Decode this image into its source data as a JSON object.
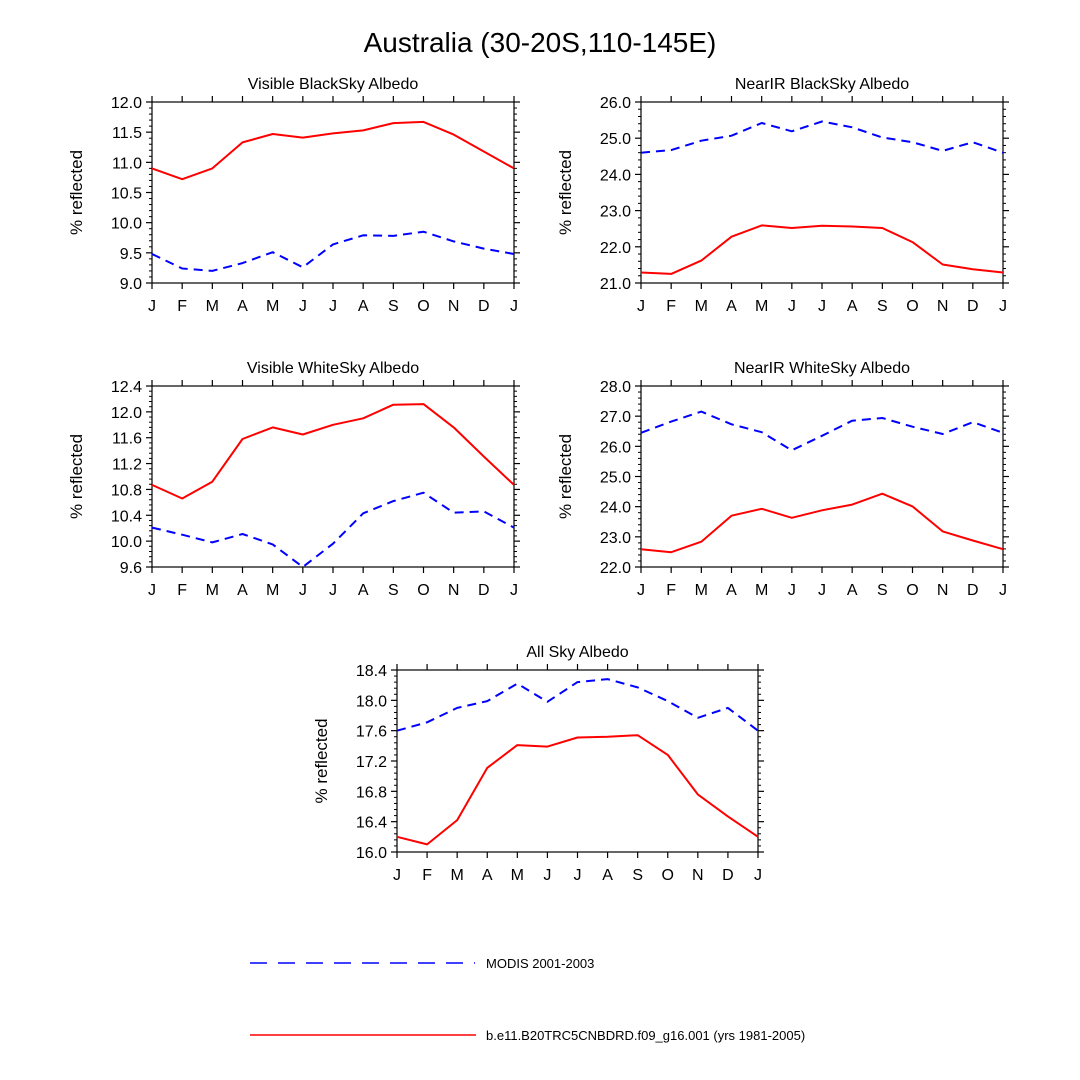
{
  "figure": {
    "title": "Australia (30-20S,110-145E)",
    "legend": [
      {
        "label": "MODIS 2001-2003",
        "color": "#0000ff",
        "style": "dashed"
      },
      {
        "label": "b.e11.B20TRC5CNBDRD.f09_g16.001 (yrs 1981-2005)",
        "color": "#ff0000",
        "style": "solid"
      }
    ]
  },
  "chart_data": [
    {
      "type": "line",
      "title": "Visible BlackSky Albedo",
      "xlabel": "",
      "ylabel": "% reflected",
      "categories": [
        "J",
        "F",
        "M",
        "A",
        "M",
        "J",
        "J",
        "A",
        "S",
        "O",
        "N",
        "D",
        "J"
      ],
      "ylim": [
        9.0,
        12.0
      ],
      "yticks": [
        "9.0",
        "9.5",
        "10.0",
        "10.5",
        "11.0",
        "11.5",
        "12.0"
      ],
      "series": [
        {
          "name": "MODIS 2001-2003",
          "color": "#0000ff",
          "style": "dashed",
          "values": [
            9.48,
            9.24,
            9.2,
            9.33,
            9.51,
            9.26,
            9.64,
            9.79,
            9.78,
            9.85,
            9.69,
            9.57,
            9.48
          ]
        },
        {
          "name": "b.e11.B20TRC5CNBDRD.f09_g16.001 (yrs 1981-2005)",
          "color": "#ff0000",
          "style": "solid",
          "values": [
            10.9,
            10.72,
            10.9,
            11.33,
            11.47,
            11.41,
            11.48,
            11.53,
            11.65,
            11.67,
            11.46,
            11.18,
            10.9
          ]
        }
      ]
    },
    {
      "type": "line",
      "title": "NearIR BlackSky Albedo",
      "xlabel": "",
      "ylabel": "% reflected",
      "categories": [
        "J",
        "F",
        "M",
        "A",
        "M",
        "J",
        "J",
        "A",
        "S",
        "O",
        "N",
        "D",
        "J"
      ],
      "ylim": [
        21.0,
        26.0
      ],
      "yticks": [
        "21.0",
        "22.0",
        "23.0",
        "24.0",
        "25.0",
        "26.0"
      ],
      "series": [
        {
          "name": "MODIS 2001-2003",
          "color": "#0000ff",
          "style": "dashed",
          "values": [
            24.6,
            24.67,
            24.93,
            25.07,
            25.42,
            25.19,
            25.46,
            25.3,
            25.02,
            24.89,
            24.65,
            24.89,
            24.6
          ]
        },
        {
          "name": "b.e11.B20TRC5CNBDRD.f09_g16.001 (yrs 1981-2005)",
          "color": "#ff0000",
          "style": "solid",
          "values": [
            21.29,
            21.25,
            21.62,
            22.28,
            22.59,
            22.52,
            22.58,
            22.56,
            22.52,
            22.13,
            21.51,
            21.38,
            21.29
          ]
        }
      ]
    },
    {
      "type": "line",
      "title": "Visible WhiteSky Albedo",
      "xlabel": "",
      "ylabel": "% reflected",
      "categories": [
        "J",
        "F",
        "M",
        "A",
        "M",
        "J",
        "J",
        "A",
        "S",
        "O",
        "N",
        "D",
        "J"
      ],
      "ylim": [
        9.6,
        12.4
      ],
      "yticks": [
        "9.6",
        "10.0",
        "10.4",
        "10.8",
        "11.2",
        "11.6",
        "12.0",
        "12.4"
      ],
      "series": [
        {
          "name": "MODIS 2001-2003",
          "color": "#0000ff",
          "style": "dashed",
          "values": [
            10.21,
            10.1,
            9.98,
            10.11,
            9.95,
            9.6,
            9.96,
            10.43,
            10.62,
            10.75,
            10.44,
            10.46,
            10.21
          ]
        },
        {
          "name": "b.e11.B20TRC5CNBDRD.f09_g16.001 (yrs 1981-2005)",
          "color": "#ff0000",
          "style": "solid",
          "values": [
            10.87,
            10.66,
            10.92,
            11.58,
            11.76,
            11.65,
            11.8,
            11.9,
            12.11,
            12.12,
            11.76,
            11.31,
            10.87
          ]
        }
      ]
    },
    {
      "type": "line",
      "title": "NearIR WhiteSky Albedo",
      "xlabel": "",
      "ylabel": "% reflected",
      "categories": [
        "J",
        "F",
        "M",
        "A",
        "M",
        "J",
        "J",
        "A",
        "S",
        "O",
        "N",
        "D",
        "J"
      ],
      "ylim": [
        22.0,
        28.0
      ],
      "yticks": [
        "22.0",
        "23.0",
        "24.0",
        "25.0",
        "26.0",
        "27.0",
        "28.0"
      ],
      "series": [
        {
          "name": "MODIS 2001-2003",
          "color": "#0000ff",
          "style": "dashed",
          "values": [
            26.45,
            26.82,
            27.15,
            26.73,
            26.47,
            25.87,
            26.35,
            26.85,
            26.94,
            26.65,
            26.41,
            26.8,
            26.45
          ]
        },
        {
          "name": "b.e11.B20TRC5CNBDRD.f09_g16.001 (yrs 1981-2005)",
          "color": "#ff0000",
          "style": "solid",
          "values": [
            22.59,
            22.49,
            22.84,
            23.7,
            23.93,
            23.63,
            23.88,
            24.07,
            24.43,
            24.01,
            23.18,
            22.88,
            22.59
          ]
        }
      ]
    },
    {
      "type": "line",
      "title": "All Sky Albedo",
      "xlabel": "",
      "ylabel": "% reflected",
      "categories": [
        "J",
        "F",
        "M",
        "A",
        "M",
        "J",
        "J",
        "A",
        "S",
        "O",
        "N",
        "D",
        "J"
      ],
      "ylim": [
        16.0,
        18.4
      ],
      "yticks": [
        "16.0",
        "16.4",
        "16.8",
        "17.2",
        "17.6",
        "18.0",
        "18.4"
      ],
      "series": [
        {
          "name": "MODIS 2001-2003",
          "color": "#0000ff",
          "style": "dashed",
          "values": [
            17.6,
            17.71,
            17.9,
            17.99,
            18.22,
            17.98,
            18.24,
            18.28,
            18.17,
            17.99,
            17.77,
            17.9,
            17.6
          ]
        },
        {
          "name": "b.e11.B20TRC5CNBDRD.f09_g16.001 (yrs 1981-2005)",
          "color": "#ff0000",
          "style": "solid",
          "values": [
            16.2,
            16.1,
            16.42,
            17.11,
            17.41,
            17.39,
            17.51,
            17.52,
            17.54,
            17.28,
            16.76,
            16.47,
            16.2
          ]
        }
      ]
    }
  ]
}
